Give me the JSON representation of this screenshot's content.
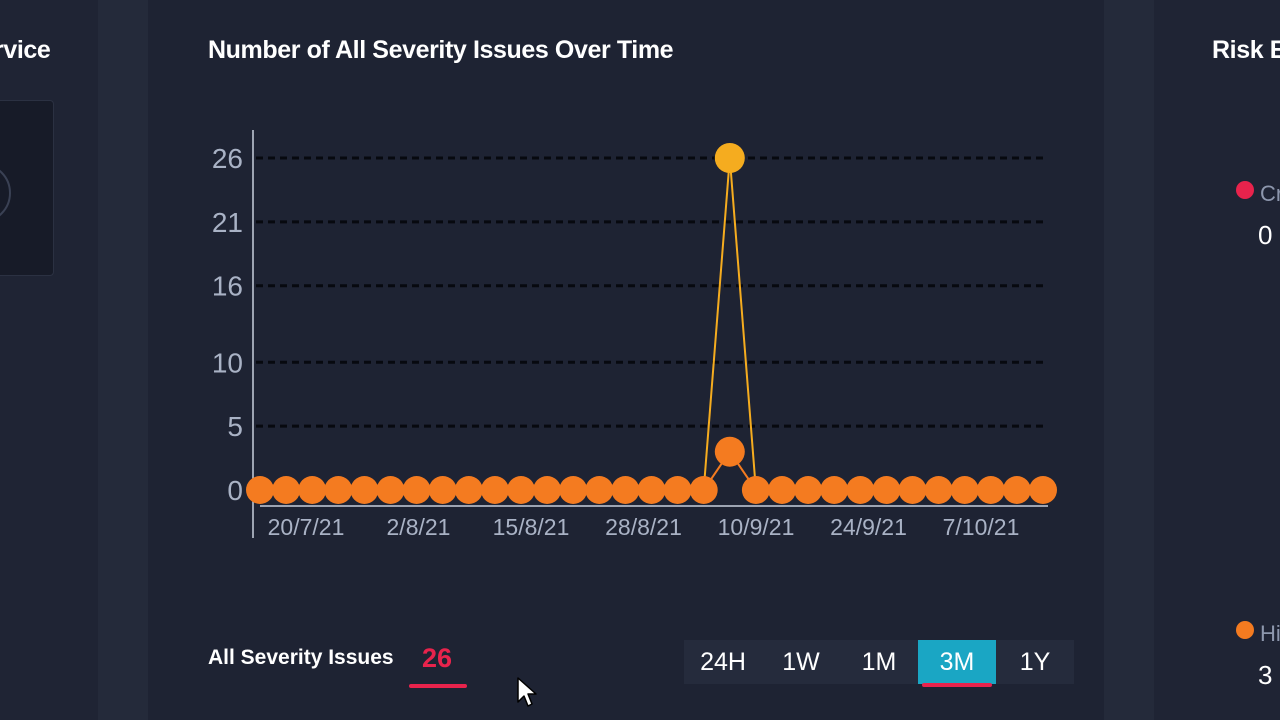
{
  "left_panel": {
    "title": "rvice"
  },
  "main_panel": {
    "title": "Number of All Severity Issues Over Time",
    "summary": {
      "label": "All Severity Issues",
      "value": "26"
    },
    "time_ranges": [
      {
        "label": "24H",
        "active": false
      },
      {
        "label": "1W",
        "active": false
      },
      {
        "label": "1M",
        "active": false
      },
      {
        "label": "3M",
        "active": true
      },
      {
        "label": "1Y",
        "active": false
      }
    ]
  },
  "right_panel": {
    "title": "Risk E",
    "legend": [
      {
        "label": "Cr",
        "value": "0",
        "color": "#e8234c"
      },
      {
        "label": "Hi",
        "value": "3",
        "color": "#f47b20"
      }
    ]
  },
  "chart_data": {
    "type": "line",
    "y_ticks": [
      0,
      5,
      10,
      16,
      21,
      26
    ],
    "x_tick_labels": [
      "20/7/21",
      "2/8/21",
      "15/8/21",
      "28/8/21",
      "10/9/21",
      "24/9/21",
      "7/10/21"
    ],
    "grid": true,
    "series": [
      {
        "color": "#f5ac1f",
        "values": [
          0,
          0,
          0,
          0,
          0,
          0,
          0,
          0,
          0,
          0,
          0,
          0,
          0,
          0,
          0,
          0,
          0,
          0,
          26,
          0,
          0,
          0,
          0,
          0,
          0,
          0,
          0,
          0,
          0,
          0,
          0
        ]
      },
      {
        "color": "#f47b20",
        "values": [
          0,
          0,
          0,
          0,
          0,
          0,
          0,
          0,
          0,
          0,
          0,
          0,
          0,
          0,
          0,
          0,
          0,
          0,
          3,
          0,
          0,
          0,
          0,
          0,
          0,
          0,
          0,
          0,
          0,
          0,
          0
        ]
      }
    ]
  }
}
